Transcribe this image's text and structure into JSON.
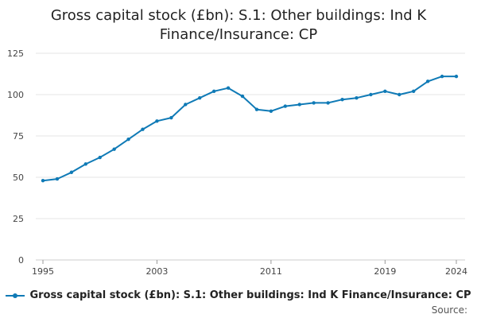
{
  "chart_data": {
    "type": "line",
    "title": "Gross capital stock (£bn): S.1: Other buildings: Ind K Finance/Insurance: CP",
    "xlabel": "",
    "ylabel": "",
    "ylim": [
      0,
      125
    ],
    "xlim": [
      1995,
      2024
    ],
    "yticks": [
      0,
      25,
      50,
      75,
      100,
      125
    ],
    "xticks": [
      1995,
      2003,
      2011,
      2019,
      2024
    ],
    "grid": true,
    "legend_position": "bottom",
    "series": [
      {
        "name": "Gross capital stock (£bn): S.1: Other buildings: Ind K Finance/Insurance: CP",
        "color": "#0f7ab6",
        "x": [
          1995,
          1996,
          1997,
          1998,
          1999,
          2000,
          2001,
          2002,
          2003,
          2004,
          2005,
          2006,
          2007,
          2008,
          2009,
          2010,
          2011,
          2012,
          2013,
          2014,
          2015,
          2016,
          2017,
          2018,
          2019,
          2020,
          2021,
          2022,
          2023,
          2024
        ],
        "values": [
          48,
          49,
          53,
          58,
          62,
          67,
          73,
          79,
          84,
          86,
          94,
          98,
          102,
          104,
          99,
          91,
          90,
          93,
          94,
          95,
          95,
          97,
          98,
          100,
          102,
          100,
          102,
          108,
          111,
          111
        ]
      }
    ]
  },
  "source_label": "Source:"
}
